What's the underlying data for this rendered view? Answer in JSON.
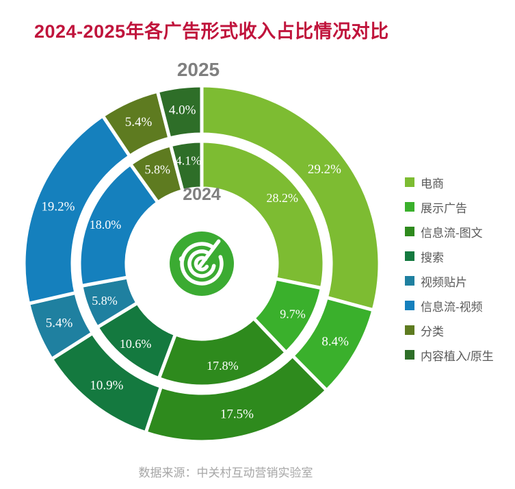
{
  "title": "2024-2025年各广告形式收入占比情况对比",
  "source": "数据来源：中关村互动营销实验室",
  "ui_colors": {
    "title": "#c0143c",
    "year_label": "#7f7f7f",
    "legend_text": "#595959",
    "source_text": "#a6a6a6",
    "logo_green": "#3bab32"
  },
  "chart_data": {
    "type": "pie",
    "subtype": "nested-donut",
    "title": "2024-2025年各广告形式收入占比情况对比",
    "legend_position": "right",
    "unit": "%",
    "categories": [
      "电商",
      "展示广告",
      "信息流-图文",
      "搜索",
      "视频贴片",
      "信息流-视频",
      "分类",
      "内容植入/原生"
    ],
    "colors": [
      "#7dbc32",
      "#3ab02c",
      "#2e8a1d",
      "#14793f",
      "#1f80a0",
      "#1580bd",
      "#5e7b20",
      "#2e6e28"
    ],
    "series": [
      {
        "name": "2025",
        "ring": "outer",
        "values": [
          29.2,
          8.4,
          17.5,
          10.9,
          5.4,
          19.2,
          5.4,
          4.0
        ]
      },
      {
        "name": "2024",
        "ring": "inner",
        "values": [
          28.2,
          9.7,
          17.8,
          10.6,
          5.8,
          18.0,
          5.8,
          4.1
        ]
      }
    ]
  }
}
